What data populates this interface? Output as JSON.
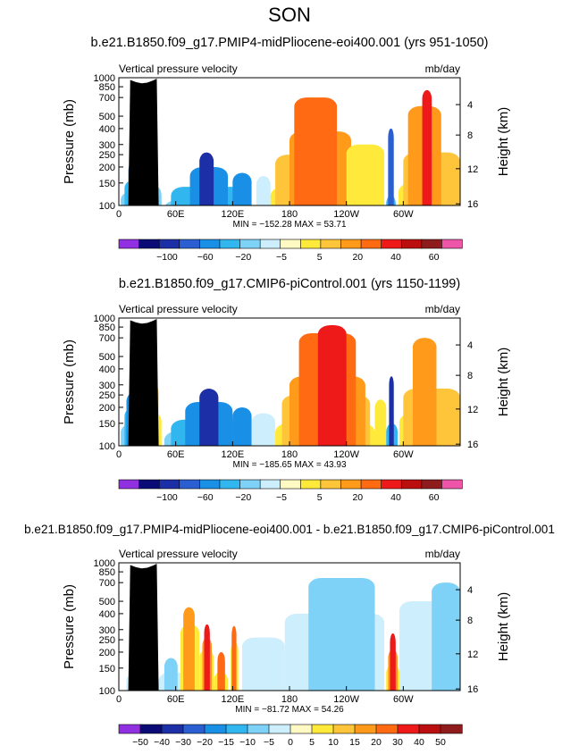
{
  "figure": {
    "season": "SON",
    "colors": {
      "pos": [
        "#fff9c4",
        "#ffe93a",
        "#ffc53a",
        "#ff9a1a",
        "#ff6a12",
        "#ee1a1a",
        "#bb0e0e",
        "#8f1c1c",
        "#ee55a8"
      ],
      "neg": [
        "#cdeefc",
        "#7fd2f7",
        "#32b6ef",
        "#1a8fe6",
        "#2b5fd1",
        "#1c2fa6",
        "#0b0b77",
        "#9130e0"
      ],
      "land": "#000000"
    }
  },
  "chart_data": [
    {
      "type": "contour",
      "title": "b.e21.B1850.f09_g17.PMIP4-midPliocene-eoi400.001 (yrs 951-1050)",
      "left_label": "Vertical pressure velocity",
      "right_label": "mb/day",
      "ylabel": "Pressure (mb)",
      "y2label": "Height (km)",
      "y_ticks": [
        "100",
        "150",
        "200",
        "250",
        "300",
        "400",
        "500",
        "700",
        "850",
        "1000"
      ],
      "y2_ticks": [
        "16",
        "12",
        "8",
        "4"
      ],
      "x_ticks": [
        "0",
        "60E",
        "120E",
        "180",
        "120W",
        "60W"
      ],
      "stats": "MIN = −152.28   MAX =  53.71",
      "colorbar_labels": [
        "−100",
        "−60",
        "−20",
        "−5",
        "5",
        "20",
        "40",
        "60"
      ],
      "colorbar_levels": 17
    },
    {
      "type": "contour",
      "title": "b.e21.B1850.f09_g17.CMIP6-piControl.001 (yrs 1150-1199)",
      "left_label": "Vertical pressure velocity",
      "right_label": "mb/day",
      "ylabel": "Pressure (mb)",
      "y2label": "Height (km)",
      "y_ticks": [
        "100",
        "150",
        "200",
        "250",
        "300",
        "400",
        "500",
        "700",
        "850",
        "1000"
      ],
      "y2_ticks": [
        "16",
        "12",
        "8",
        "4"
      ],
      "x_ticks": [
        "0",
        "60E",
        "120E",
        "180",
        "120W",
        "60W"
      ],
      "stats": "MIN = −185.65   MAX =  43.93",
      "colorbar_labels": [
        "−100",
        "−60",
        "−20",
        "−5",
        "5",
        "20",
        "40",
        "60"
      ],
      "colorbar_levels": 17
    },
    {
      "type": "contour",
      "title": "b.e21.B1850.f09_g17.PMIP4-midPliocene-eoi400.001 - b.e21.B1850.f09_g17.CMIP6-piControl.001",
      "left_label": "Vertical pressure velocity",
      "right_label": "mb/day",
      "ylabel": "Pressure (mb)",
      "y2label": "Height (km)",
      "y_ticks": [
        "100",
        "150",
        "200",
        "250",
        "300",
        "400",
        "500",
        "700",
        "850",
        "1000"
      ],
      "y2_ticks": [
        "16",
        "12",
        "8",
        "4"
      ],
      "x_ticks": [
        "0",
        "60E",
        "120E",
        "180",
        "120W",
        "60W"
      ],
      "stats": "MIN = −81.72   MAX =  54.26",
      "colorbar_labels": [
        "−50",
        "−40",
        "−30",
        "−20",
        "−15",
        "−10",
        "−5",
        "0",
        "5",
        "10",
        "15",
        "20",
        "30",
        "40",
        "50"
      ],
      "colorbar_levels": 16
    }
  ]
}
